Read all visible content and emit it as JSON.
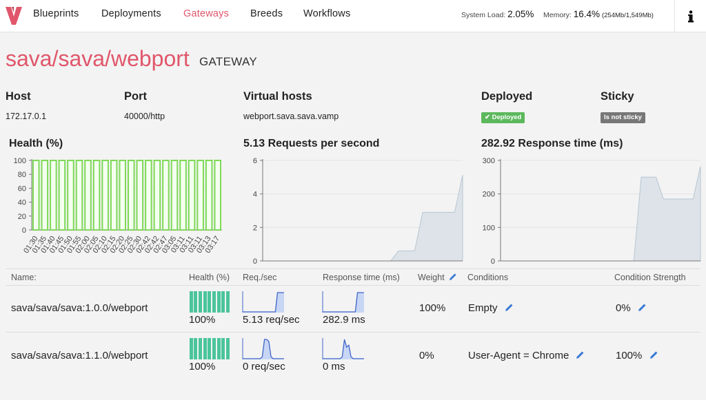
{
  "nav": {
    "items": [
      "Blueprints",
      "Deployments",
      "Gateways",
      "Breeds",
      "Workflows"
    ],
    "active_index": 2
  },
  "stats": {
    "load_label": "System Load:",
    "load_value": "2.05%",
    "memory_label": "Memory:",
    "memory_value": "16.4%",
    "memory_detail": "(254Mb/1,549Mb)"
  },
  "page": {
    "title": "sava/sava/webport",
    "subtitle": "GATEWAY"
  },
  "details": {
    "host_label": "Host",
    "host_value": "172.17.0.1",
    "port_label": "Port",
    "port_value": "40000/http",
    "vhosts_label": "Virtual hosts",
    "vhosts_value": "webport.sava.sava.vamp",
    "deployed_label": "Deployed",
    "deployed_badge": "✔ Deployed",
    "sticky_label": "Sticky",
    "sticky_badge": "Is not sticky"
  },
  "colors": {
    "accent": "#e0566a",
    "health_green": "#7ed957",
    "area_fill": "#dde3e8",
    "area_line": "#b6c6d3",
    "spark_fill": "#c7d6f5",
    "spark_line": "#3f64c8",
    "bar_teal": "#4bc49c"
  },
  "chart_data": [
    {
      "type": "bar",
      "title": "Health (%)",
      "categories": [
        "01:30",
        "01:35",
        "01:40",
        "01:45",
        "01:50",
        "01:55",
        "02:00",
        "02:05",
        "02:10",
        "02:15",
        "02:20",
        "02:25",
        "02:30",
        "02:42",
        "02:42",
        "02:47",
        "03:05",
        "03:11",
        "03:11",
        "03:11",
        "03:13",
        "03:17"
      ],
      "values": [
        100,
        100,
        100,
        100,
        100,
        100,
        100,
        100,
        100,
        100,
        100,
        100,
        100,
        100,
        100,
        100,
        100,
        100,
        100,
        100,
        100,
        100
      ],
      "ylim": [
        0,
        100
      ],
      "yticks": [
        0,
        20,
        40,
        60,
        80,
        100
      ],
      "grid": true
    },
    {
      "type": "area",
      "title_value": "5.13",
      "title_text": "Requests per second",
      "ylim": [
        0,
        6
      ],
      "yticks": [
        0,
        2,
        4,
        6
      ],
      "values": [
        0,
        0,
        0,
        0,
        0,
        0,
        0,
        0,
        0,
        0,
        0,
        0,
        0,
        0,
        0,
        0,
        0,
        0.6,
        0.6,
        0.6,
        2.9,
        2.9,
        2.9,
        2.9,
        2.9,
        5.13
      ],
      "grid": true
    },
    {
      "type": "area",
      "title_value": "282.92",
      "title_text": "Response time (ms)",
      "ylim": [
        0,
        300
      ],
      "yticks": [
        0,
        100,
        200,
        300
      ],
      "values": [
        0,
        0,
        0,
        0,
        0,
        0,
        0,
        0,
        0,
        0,
        0,
        0,
        0,
        0,
        0,
        0,
        0,
        0,
        0,
        250,
        250,
        250,
        185,
        185,
        185,
        185,
        185,
        282.92
      ],
      "grid": true
    }
  ],
  "table": {
    "headers": {
      "name": "Name:",
      "health": "Health (%)",
      "req": "Req./sec",
      "resp": "Response time (ms)",
      "weight": "Weight",
      "conditions": "Conditions",
      "strength": "Condition Strength"
    },
    "rows": [
      {
        "name": "sava/sava/sava:1.0.0/webport",
        "health": "100%",
        "health_bars": [
          100,
          100,
          100,
          100,
          100,
          100,
          100,
          100,
          100
        ],
        "req": "5.13 req/sec",
        "req_spark": [
          0,
          0,
          0,
          0,
          0,
          0,
          0,
          0,
          0,
          0,
          0,
          0,
          0,
          0,
          0,
          0,
          1,
          1,
          1,
          1
        ],
        "resp": "282.9 ms",
        "resp_spark": [
          0,
          0,
          0,
          0,
          0,
          0,
          0,
          0,
          0,
          0,
          0,
          0,
          0,
          0,
          0,
          0,
          1,
          1,
          1,
          1
        ],
        "weight": "100%",
        "condition": "Empty",
        "strength": "0%"
      },
      {
        "name": "sava/sava/sava:1.1.0/webport",
        "health": "100%",
        "health_bars": [
          100,
          100,
          100,
          100,
          100,
          100,
          100,
          100,
          100
        ],
        "req": "0 req/sec",
        "req_spark": [
          0,
          0,
          0,
          0,
          0,
          0,
          0,
          0,
          0,
          0.1,
          1,
          1,
          0.9,
          0.1,
          0,
          0,
          0,
          0,
          0,
          0
        ],
        "resp": "0 ms",
        "resp_spark": [
          0,
          0,
          0,
          0,
          0,
          0,
          0,
          0,
          0,
          0.1,
          1,
          0.6,
          0.7,
          0.1,
          0,
          0,
          0,
          0,
          0,
          0
        ],
        "weight": "0%",
        "condition": "User-Agent = Chrome",
        "strength": "100%"
      }
    ]
  }
}
